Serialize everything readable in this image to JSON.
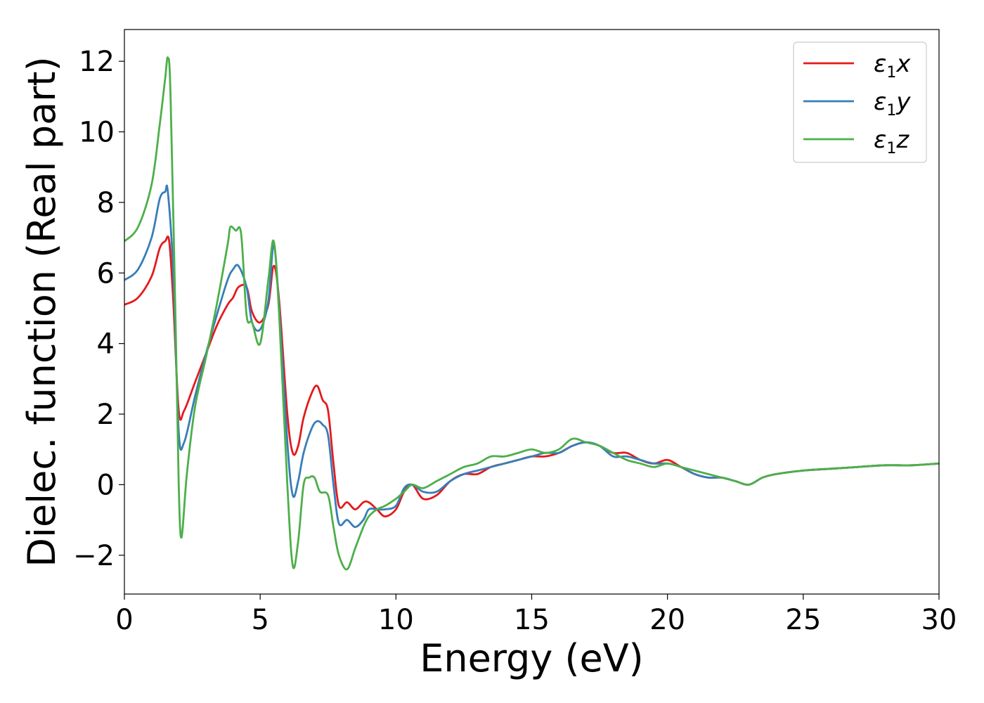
{
  "chart_data": {
    "type": "line",
    "xlabel": "Energy (eV)",
    "ylabel": "Dielec. function (Real part)",
    "xlim": [
      0,
      30
    ],
    "ylim": [
      -3.1,
      12.9
    ],
    "xticks": [
      0,
      5,
      10,
      15,
      20,
      25,
      30
    ],
    "yticks": [
      -2,
      0,
      2,
      4,
      6,
      8,
      10,
      12
    ],
    "xtick_labels": [
      "0",
      "5",
      "10",
      "15",
      "20",
      "25",
      "30"
    ],
    "ytick_labels": [
      "−2",
      "0",
      "2",
      "4",
      "6",
      "8",
      "10",
      "12"
    ],
    "grid": false,
    "legend_position": "top-right",
    "series": [
      {
        "name": "x",
        "legend_symbol": "ε",
        "legend_sub": "1",
        "color": "#e41a1c",
        "x": [
          0,
          0.5,
          1.0,
          1.3,
          1.5,
          1.65,
          1.8,
          2.0,
          2.2,
          2.6,
          3.0,
          3.4,
          3.8,
          4.0,
          4.2,
          4.5,
          4.7,
          5.0,
          5.3,
          5.5,
          5.7,
          6.0,
          6.2,
          6.4,
          6.6,
          6.9,
          7.1,
          7.3,
          7.5,
          7.7,
          7.9,
          8.2,
          8.5,
          8.8,
          9.0,
          9.3,
          9.6,
          10.0,
          10.3,
          10.6,
          11.0,
          11.5,
          12.0,
          12.5,
          13.0,
          13.5,
          14.0,
          14.5,
          15.0,
          15.5,
          16.0,
          16.5,
          17.0,
          17.5,
          18.0,
          18.5,
          19.0,
          19.5,
          20.0,
          20.5,
          21.0,
          21.5,
          22.0,
          22.5,
          23.0,
          23.5,
          24.0,
          25.0,
          26.0,
          27.0,
          28.0,
          29.0,
          30.0
        ],
        "y": [
          5.1,
          5.3,
          5.9,
          6.7,
          6.9,
          6.9,
          5.2,
          2.1,
          2.1,
          2.9,
          3.7,
          4.5,
          5.1,
          5.3,
          5.6,
          5.6,
          4.9,
          4.6,
          5.1,
          6.2,
          5.2,
          2.0,
          0.9,
          1.1,
          1.9,
          2.6,
          2.8,
          2.4,
          2.1,
          0.6,
          -0.6,
          -0.5,
          -0.7,
          -0.5,
          -0.5,
          -0.7,
          -0.9,
          -0.7,
          -0.2,
          0.0,
          -0.4,
          -0.3,
          0.1,
          0.3,
          0.3,
          0.5,
          0.6,
          0.7,
          0.8,
          0.8,
          0.9,
          1.1,
          1.2,
          1.1,
          0.9,
          0.9,
          0.7,
          0.6,
          0.7,
          0.5,
          0.3,
          0.2,
          0.2,
          0.1,
          0.0,
          0.2,
          0.3,
          0.4,
          0.45,
          0.5,
          0.55,
          0.55,
          0.6
        ]
      },
      {
        "name": "y",
        "legend_symbol": "ε",
        "legend_sub": "1",
        "color": "#377eb8",
        "x": [
          0,
          0.5,
          1.0,
          1.3,
          1.5,
          1.6,
          1.8,
          2.0,
          2.2,
          2.6,
          3.0,
          3.4,
          3.8,
          4.0,
          4.2,
          4.5,
          4.7,
          5.0,
          5.3,
          5.5,
          5.7,
          6.0,
          6.2,
          6.4,
          6.6,
          6.9,
          7.1,
          7.3,
          7.5,
          7.7,
          7.9,
          8.2,
          8.5,
          8.8,
          9.0,
          9.3,
          9.6,
          10.0,
          10.3,
          10.6,
          11.0,
          11.5,
          12.0,
          12.5,
          13.0,
          13.5,
          14.0,
          14.5,
          15.0,
          15.5,
          16.0,
          16.5,
          17.0,
          17.5,
          18.0,
          18.5,
          19.0,
          19.5,
          20.0,
          20.5,
          21.0,
          21.5,
          22.0,
          22.5,
          23.0,
          23.5,
          24.0,
          25.0,
          26.0,
          27.0,
          28.0,
          29.0,
          30.0
        ],
        "y": [
          5.8,
          6.1,
          7.0,
          8.1,
          8.3,
          8.3,
          6.0,
          1.5,
          1.2,
          2.5,
          3.7,
          4.8,
          5.8,
          6.1,
          6.2,
          5.6,
          4.6,
          4.4,
          5.2,
          6.8,
          5.0,
          1.2,
          -0.3,
          0.1,
          0.9,
          1.6,
          1.8,
          1.7,
          1.4,
          0.0,
          -1.1,
          -1.0,
          -1.2,
          -1.0,
          -0.7,
          -0.7,
          -0.7,
          -0.6,
          -0.1,
          0.0,
          -0.2,
          -0.2,
          0.1,
          0.3,
          0.4,
          0.5,
          0.6,
          0.7,
          0.8,
          0.9,
          0.9,
          1.1,
          1.2,
          1.1,
          0.8,
          0.8,
          0.7,
          0.6,
          0.6,
          0.5,
          0.3,
          0.2,
          0.2,
          0.1,
          0.0,
          0.2,
          0.3,
          0.4,
          0.45,
          0.5,
          0.55,
          0.55,
          0.6
        ]
      },
      {
        "name": "z",
        "legend_symbol": "ε",
        "legend_sub": "1",
        "color": "#4daf4a",
        "x": [
          0,
          0.5,
          1.0,
          1.3,
          1.5,
          1.6,
          1.7,
          1.9,
          2.0,
          2.1,
          2.3,
          2.6,
          3.0,
          3.4,
          3.8,
          3.9,
          4.1,
          4.3,
          4.5,
          4.7,
          5.0,
          5.3,
          5.5,
          5.7,
          6.0,
          6.2,
          6.4,
          6.6,
          6.8,
          7.0,
          7.2,
          7.5,
          7.7,
          7.9,
          8.2,
          8.5,
          8.8,
          9.0,
          9.3,
          9.6,
          10.0,
          10.3,
          10.6,
          11.0,
          11.5,
          12.0,
          12.5,
          13.0,
          13.5,
          14.0,
          14.5,
          15.0,
          15.5,
          16.0,
          16.5,
          17.0,
          17.5,
          18.0,
          18.5,
          19.0,
          19.5,
          20.0,
          20.5,
          21.0,
          21.5,
          22.0,
          22.5,
          23.0,
          23.5,
          24.0,
          25.0,
          26.0,
          27.0,
          28.0,
          29.0,
          30.0
        ],
        "y": [
          6.9,
          7.3,
          8.5,
          10.2,
          11.5,
          12.1,
          11.0,
          4.0,
          0.0,
          -1.5,
          0.3,
          2.2,
          3.6,
          5.1,
          6.8,
          7.3,
          7.2,
          7.1,
          4.8,
          4.6,
          4.0,
          5.8,
          6.9,
          4.8,
          0.0,
          -2.3,
          -1.6,
          0.0,
          0.2,
          0.2,
          -0.2,
          -0.3,
          -1.2,
          -2.0,
          -2.4,
          -1.8,
          -1.2,
          -0.9,
          -0.7,
          -0.6,
          -0.4,
          -0.2,
          0.0,
          -0.1,
          0.1,
          0.3,
          0.5,
          0.6,
          0.8,
          0.8,
          0.9,
          1.0,
          0.9,
          1.0,
          1.3,
          1.2,
          1.1,
          0.9,
          0.7,
          0.6,
          0.5,
          0.6,
          0.5,
          0.4,
          0.3,
          0.2,
          0.1,
          0.0,
          0.2,
          0.3,
          0.4,
          0.45,
          0.5,
          0.55,
          0.55,
          0.6
        ]
      }
    ]
  }
}
